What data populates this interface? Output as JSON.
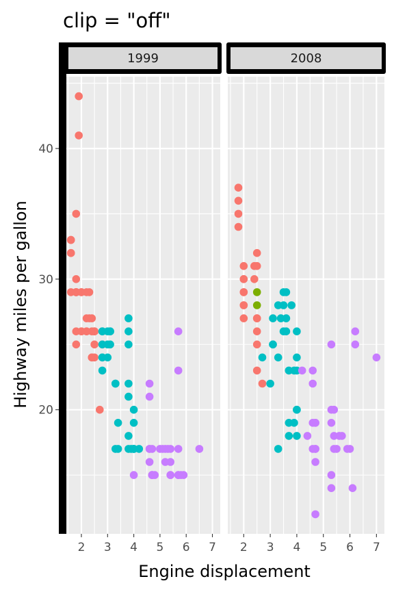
{
  "chart_data": {
    "type": "scatter",
    "title": "clip = \"off\"",
    "xlabel": "Engine displacement",
    "ylabel": "Highway miles per gallon",
    "xlim": [
      1.4,
      7.3
    ],
    "ylim": [
      10.5,
      45.5
    ],
    "x_ticks": [
      2,
      3,
      4,
      5,
      6,
      7
    ],
    "y_ticks": [
      20,
      30,
      40
    ],
    "grid": true,
    "legend": "none",
    "colors": [
      "#F8766D",
      "#7CAE00",
      "#00BFC4",
      "#C77CFF"
    ],
    "panels": [
      {
        "label": "1999",
        "series": [
          {
            "color": 0,
            "points": [
              [
                1.8,
                29
              ],
              [
                1.8,
                29
              ],
              [
                2.8,
                26
              ],
              [
                1.8,
                26
              ],
              [
                2.8,
                25
              ],
              [
                1.6,
                33
              ],
              [
                1.6,
                32
              ],
              [
                1.6,
                33
              ],
              [
                1.6,
                29
              ],
              [
                1.6,
                32
              ],
              [
                1.8,
                35
              ],
              [
                1.8,
                29
              ],
              [
                1.8,
                29
              ],
              [
                1.9,
                44
              ],
              [
                2.0,
                29
              ],
              [
                2.0,
                29
              ],
              [
                1.9,
                41
              ],
              [
                2.0,
                26
              ],
              [
                2.0,
                26
              ],
              [
                2.2,
                27
              ],
              [
                2.2,
                26
              ],
              [
                2.2,
                29
              ],
              [
                2.4,
                24
              ],
              [
                2.4,
                27
              ],
              [
                2.5,
                25
              ],
              [
                2.5,
                26
              ],
              [
                2.4,
                26
              ],
              [
                2.7,
                20
              ],
              [
                1.8,
                25
              ],
              [
                1.8,
                30
              ],
              [
                2.3,
                27
              ],
              [
                2.3,
                29
              ],
              [
                2.4,
                24
              ],
              [
                2.5,
                26
              ],
              [
                2.5,
                26
              ],
              [
                2.5,
                24
              ],
              [
                2.2,
                26
              ]
            ]
          },
          {
            "color": 2,
            "points": [
              [
                2.8,
                24
              ],
              [
                2.8,
                25
              ],
              [
                3.1,
                25
              ],
              [
                2.8,
                26
              ],
              [
                3.1,
                26
              ],
              [
                2.8,
                23
              ],
              [
                3.0,
                26
              ],
              [
                3.0,
                25
              ],
              [
                2.8,
                26
              ],
              [
                2.8,
                24
              ],
              [
                3.0,
                24
              ],
              [
                3.1,
                26
              ],
              [
                3.3,
                22
              ],
              [
                3.3,
                22
              ],
              [
                3.8,
                22
              ],
              [
                3.8,
                27
              ],
              [
                3.8,
                25
              ],
              [
                3.8,
                21
              ],
              [
                4.0,
                20
              ],
              [
                4.0,
                19
              ],
              [
                4.0,
                17
              ],
              [
                4.2,
                17
              ],
              [
                3.4,
                19
              ],
              [
                3.3,
                17
              ],
              [
                3.4,
                17
              ],
              [
                3.8,
                17
              ],
              [
                3.9,
                17
              ],
              [
                4.0,
                17
              ],
              [
                4.0,
                17
              ],
              [
                3.8,
                26
              ],
              [
                3.8,
                18
              ]
            ]
          },
          {
            "color": 3,
            "points": [
              [
                4.6,
                17
              ],
              [
                4.6,
                16
              ],
              [
                4.6,
                17
              ],
              [
                5.0,
                17
              ],
              [
                5.4,
                15
              ],
              [
                5.4,
                16
              ],
              [
                4.0,
                15
              ],
              [
                5.7,
                23
              ],
              [
                5.7,
                26
              ],
              [
                5.4,
                17
              ],
              [
                5.4,
                15
              ],
              [
                4.7,
                15
              ],
              [
                4.7,
                15
              ],
              [
                4.6,
                21
              ],
              [
                5.7,
                17
              ],
              [
                5.9,
                15
              ],
              [
                4.7,
                17
              ],
              [
                4.7,
                15
              ],
              [
                4.6,
                22
              ],
              [
                5.7,
                15
              ],
              [
                5.2,
                17
              ],
              [
                5.3,
                17
              ],
              [
                5.2,
                16
              ],
              [
                4.8,
                15
              ],
              [
                5.7,
                15
              ],
              [
                6.5,
                17
              ],
              [
                5.1,
                17
              ],
              [
                5.8,
                15
              ]
            ]
          }
        ]
      },
      {
        "label": "2008",
        "series": [
          {
            "color": 0,
            "points": [
              [
                2.0,
                31
              ],
              [
                2.0,
                30
              ],
              [
                2.0,
                28
              ],
              [
                2.0,
                27
              ],
              [
                1.8,
                34
              ],
              [
                1.8,
                36
              ],
              [
                1.8,
                35
              ],
              [
                1.8,
                37
              ],
              [
                2.0,
                29
              ],
              [
                2.0,
                30
              ],
              [
                2.0,
                29
              ],
              [
                2.4,
                31
              ],
              [
                2.5,
                31
              ],
              [
                2.5,
                32
              ],
              [
                2.5,
                27
              ],
              [
                2.5,
                26
              ],
              [
                2.5,
                25
              ],
              [
                2.5,
                23
              ],
              [
                2.7,
                22
              ],
              [
                2.4,
                30
              ],
              [
                2.0,
                28
              ],
              [
                2.5,
                27
              ]
            ]
          },
          {
            "color": 1,
            "points": [
              [
                2.5,
                28
              ],
              [
                2.5,
                29
              ]
            ]
          },
          {
            "color": 2,
            "points": [
              [
                2.7,
                24
              ],
              [
                3.0,
                22
              ],
              [
                3.1,
                25
              ],
              [
                3.1,
                27
              ],
              [
                3.3,
                24
              ],
              [
                3.3,
                28
              ],
              [
                3.5,
                28
              ],
              [
                3.6,
                26
              ],
              [
                3.6,
                29
              ],
              [
                3.7,
                18
              ],
              [
                3.7,
                19
              ],
              [
                3.7,
                23
              ],
              [
                3.8,
                28
              ],
              [
                3.9,
                23
              ],
              [
                4.0,
                24
              ],
              [
                4.0,
                26
              ],
              [
                4.0,
                18
              ],
              [
                4.0,
                20
              ],
              [
                4.0,
                20
              ],
              [
                3.5,
                29
              ],
              [
                3.4,
                27
              ],
              [
                3.1,
                25
              ],
              [
                3.5,
                26
              ],
              [
                3.3,
                17
              ],
              [
                3.6,
                27
              ],
              [
                3.9,
                19
              ],
              [
                4.0,
                23
              ]
            ]
          },
          {
            "color": 3,
            "points": [
              [
                4.2,
                23
              ],
              [
                4.4,
                18
              ],
              [
                4.6,
                17
              ],
              [
                4.7,
                17
              ],
              [
                4.7,
                19
              ],
              [
                4.7,
                16
              ],
              [
                4.7,
                12
              ],
              [
                4.6,
                22
              ],
              [
                4.6,
                23
              ],
              [
                4.7,
                19
              ],
              [
                5.3,
                25
              ],
              [
                5.3,
                20
              ],
              [
                5.3,
                19
              ],
              [
                5.3,
                15
              ],
              [
                5.3,
                14
              ],
              [
                5.4,
                20
              ],
              [
                5.4,
                18
              ],
              [
                5.7,
                18
              ],
              [
                5.9,
                17
              ],
              [
                6.0,
                17
              ],
              [
                6.1,
                14
              ],
              [
                6.2,
                26
              ],
              [
                6.2,
                25
              ],
              [
                7.0,
                24
              ],
              [
                5.5,
                17
              ],
              [
                5.6,
                18
              ],
              [
                5.4,
                17
              ],
              [
                4.6,
                19
              ],
              [
                4.7,
                17
              ]
            ]
          }
        ]
      }
    ]
  }
}
